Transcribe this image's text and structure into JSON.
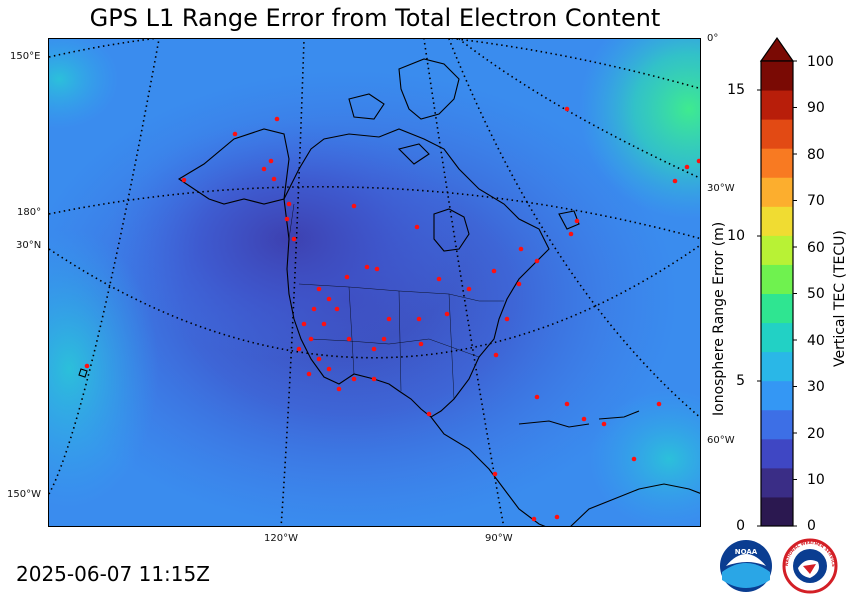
{
  "title": "GPS L1 Range Error from Total Electron Content",
  "timestamp": "2025-06-07 11:15Z",
  "graticule_labels": {
    "lon_150e": "150°E",
    "lon_180": "180°",
    "lat_30n": "30°N",
    "lon_150w": "150°W",
    "lon_0": "0°",
    "lon_30w": "30°W",
    "lon_60w": "60°W",
    "lon_120w": "120°W",
    "lon_90w": "90°W"
  },
  "range_error_scale": {
    "label": "Ionosphere Range Error (m)",
    "ticks": [
      "15",
      "10",
      "5",
      "0"
    ]
  },
  "tec_scale": {
    "label": "Vertical TEC (TECU)",
    "ticks": [
      "100",
      "90",
      "80",
      "70",
      "60",
      "50",
      "40",
      "30",
      "20",
      "10",
      "0"
    ],
    "colors": [
      "#2b1850",
      "#3a2d86",
      "#3f47c4",
      "#3d6fe6",
      "#3497f4",
      "#2ab7e7",
      "#22d1c5",
      "#2fe591",
      "#6ff24f",
      "#b8f235",
      "#f0dc32",
      "#fcae2e",
      "#f87a22",
      "#e24a14",
      "#b81e0a",
      "#7a0a04"
    ]
  },
  "logos": {
    "noaa_text": "NOAA",
    "nws_text": "NATIONAL WEATHER SERVICE"
  },
  "colors": {
    "ocean_base": "#3f8ef0",
    "low_tec": "#3c55c8",
    "high_tec": "#2fdca0",
    "station": "#ff1010"
  }
}
